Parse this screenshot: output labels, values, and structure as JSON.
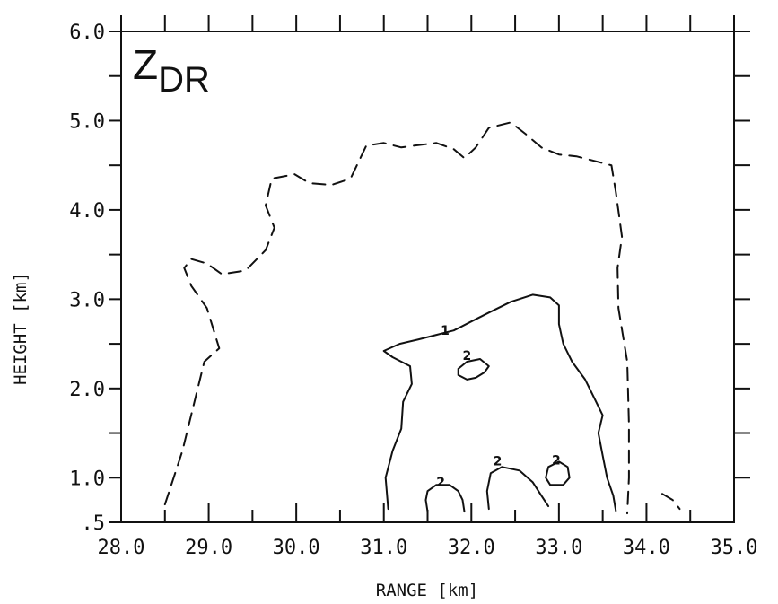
{
  "chart_data": {
    "type": "contour",
    "title": "Z",
    "title_subscript": "DR",
    "xlabel": "RANGE [km]",
    "ylabel": "HEIGHT [km]",
    "xlim": [
      28.0,
      35.0
    ],
    "ylim": [
      0.5,
      6.0
    ],
    "x_ticks": [
      28.0,
      29.0,
      30.0,
      31.0,
      32.0,
      33.0,
      34.0,
      35.0
    ],
    "x_tick_labels": [
      "28.0",
      "29.0",
      "30.0",
      "31.0",
      "32.0",
      "33.0",
      "34.0",
      "35.0"
    ],
    "y_ticks": [
      0.5,
      1.0,
      2.0,
      3.0,
      4.0,
      5.0,
      6.0
    ],
    "y_tick_labels": [
      ".5",
      "1.0",
      "2.0",
      "3.0",
      "4.0",
      "5.0",
      "6.0"
    ],
    "minor_tick_step": 0.5,
    "grid": false,
    "contours": [
      {
        "level_label": "",
        "style": "dashed",
        "points": [
          [
            28.5,
            0.7
          ],
          [
            28.7,
            1.3
          ],
          [
            28.85,
            1.9
          ],
          [
            28.95,
            2.3
          ],
          [
            29.12,
            2.45
          ],
          [
            28.98,
            2.9
          ],
          [
            28.8,
            3.15
          ],
          [
            28.72,
            3.35
          ],
          [
            28.8,
            3.45
          ],
          [
            28.98,
            3.4
          ],
          [
            29.15,
            3.28
          ],
          [
            29.42,
            3.32
          ],
          [
            29.65,
            3.55
          ],
          [
            29.75,
            3.8
          ],
          [
            29.65,
            4.05
          ],
          [
            29.72,
            4.35
          ],
          [
            29.98,
            4.4
          ],
          [
            30.15,
            4.3
          ],
          [
            30.4,
            4.28
          ],
          [
            30.62,
            4.35
          ],
          [
            30.8,
            4.72
          ],
          [
            31.0,
            4.75
          ],
          [
            31.2,
            4.7
          ],
          [
            31.35,
            4.72
          ],
          [
            31.6,
            4.75
          ],
          [
            31.8,
            4.68
          ],
          [
            31.92,
            4.58
          ],
          [
            32.05,
            4.7
          ],
          [
            32.2,
            4.92
          ],
          [
            32.45,
            4.98
          ],
          [
            32.62,
            4.85
          ],
          [
            32.8,
            4.7
          ],
          [
            33.0,
            4.62
          ],
          [
            33.2,
            4.6
          ],
          [
            33.4,
            4.55
          ],
          [
            33.6,
            4.5
          ],
          [
            33.65,
            4.2
          ],
          [
            33.72,
            3.7
          ],
          [
            33.67,
            3.35
          ],
          [
            33.68,
            2.9
          ],
          [
            33.78,
            2.3
          ],
          [
            33.8,
            1.6
          ],
          [
            33.8,
            1.0
          ],
          [
            33.78,
            0.6
          ]
        ]
      },
      {
        "level_label": "",
        "style": "dashed",
        "points": [
          [
            34.18,
            0.82
          ],
          [
            34.3,
            0.75
          ],
          [
            34.38,
            0.65
          ]
        ]
      },
      {
        "level_label": "1",
        "style": "solid",
        "points": [
          [
            31.05,
            0.65
          ],
          [
            31.02,
            1.0
          ],
          [
            31.1,
            1.3
          ],
          [
            31.2,
            1.55
          ],
          [
            31.22,
            1.85
          ],
          [
            31.32,
            2.05
          ],
          [
            31.3,
            2.25
          ],
          [
            31.1,
            2.35
          ],
          [
            31.0,
            2.42
          ],
          [
            31.18,
            2.5
          ],
          [
            31.4,
            2.55
          ],
          [
            31.6,
            2.6
          ],
          [
            31.8,
            2.65
          ],
          [
            32.0,
            2.75
          ],
          [
            32.2,
            2.85
          ],
          [
            32.45,
            2.97
          ],
          [
            32.7,
            3.05
          ],
          [
            32.9,
            3.02
          ],
          [
            33.0,
            2.93
          ],
          [
            33.0,
            2.72
          ],
          [
            33.05,
            2.5
          ],
          [
            33.15,
            2.3
          ],
          [
            33.3,
            2.1
          ],
          [
            33.4,
            1.9
          ],
          [
            33.5,
            1.7
          ],
          [
            33.45,
            1.5
          ],
          [
            33.5,
            1.25
          ],
          [
            33.55,
            1.0
          ],
          [
            33.62,
            0.8
          ],
          [
            33.65,
            0.63
          ]
        ]
      },
      {
        "level_label": "2",
        "style": "solid",
        "points": [
          [
            31.85,
            2.15
          ],
          [
            31.95,
            2.1
          ],
          [
            32.05,
            2.12
          ],
          [
            32.15,
            2.18
          ],
          [
            32.2,
            2.25
          ],
          [
            32.1,
            2.33
          ],
          [
            31.95,
            2.3
          ],
          [
            31.85,
            2.22
          ],
          [
            31.85,
            2.15
          ]
        ]
      },
      {
        "level_label": "2",
        "style": "solid",
        "points": [
          [
            31.5,
            0.62
          ],
          [
            31.48,
            0.75
          ],
          [
            31.5,
            0.85
          ],
          [
            31.6,
            0.92
          ],
          [
            31.75,
            0.92
          ],
          [
            31.85,
            0.85
          ],
          [
            31.9,
            0.75
          ],
          [
            31.92,
            0.62
          ]
        ]
      },
      {
        "level_label": "2",
        "style": "solid",
        "points": [
          [
            32.2,
            0.65
          ],
          [
            32.18,
            0.85
          ],
          [
            32.22,
            1.05
          ],
          [
            32.35,
            1.12
          ],
          [
            32.55,
            1.08
          ],
          [
            32.7,
            0.95
          ],
          [
            32.8,
            0.8
          ],
          [
            32.88,
            0.68
          ]
        ]
      },
      {
        "level_label": "2",
        "style": "solid",
        "points": [
          [
            32.85,
            1.0
          ],
          [
            32.9,
            0.92
          ],
          [
            33.05,
            0.92
          ],
          [
            33.12,
            1.0
          ],
          [
            33.1,
            1.12
          ],
          [
            33.0,
            1.18
          ],
          [
            32.88,
            1.12
          ],
          [
            32.85,
            1.0
          ]
        ]
      }
    ],
    "contour_labels": [
      {
        "text": "1",
        "x": 31.7,
        "y": 2.6
      },
      {
        "text": "2",
        "x": 31.95,
        "y": 2.32
      },
      {
        "text": "2",
        "x": 31.65,
        "y": 0.9
      },
      {
        "text": "2",
        "x": 32.3,
        "y": 1.14
      },
      {
        "text": "2",
        "x": 32.97,
        "y": 1.15
      }
    ]
  }
}
